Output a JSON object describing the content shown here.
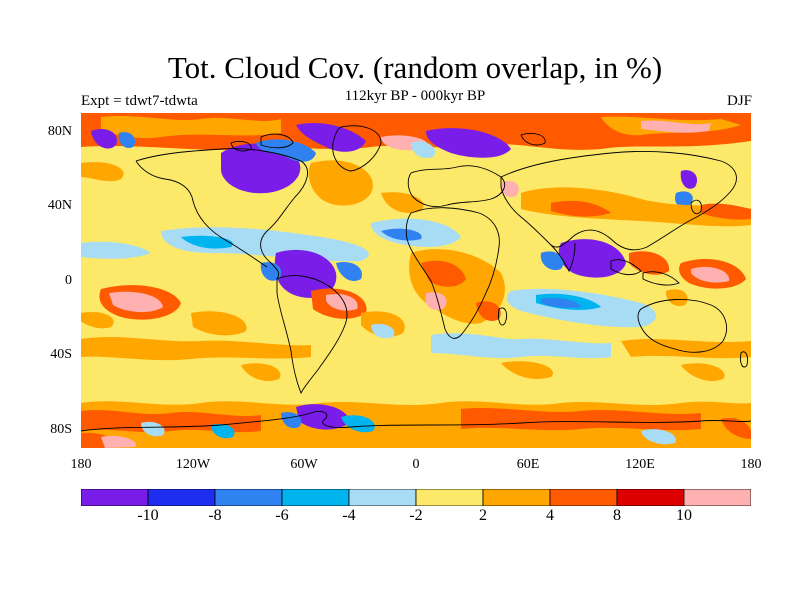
{
  "title": "Tot. Cloud Cov. (random overlap, in %)",
  "subtitle": "112kyr BP - 000kyr BP",
  "left_label": "Expt = tdwt7-tdwta",
  "right_label": "DJF",
  "lat_ticks": [
    "80N",
    "40N",
    "0",
    "40S",
    "80S"
  ],
  "lon_ticks": [
    "180",
    "120W",
    "60W",
    "0",
    "60E",
    "120E",
    "180"
  ],
  "colorbar": {
    "colors": [
      "#7a1de8",
      "#1e2ef0",
      "#2f82f0",
      "#00b4f0",
      "#a8dcf5",
      "#fce96a",
      "#ffa600",
      "#ff5a00",
      "#dd0000",
      "#ffb0b0"
    ],
    "labels": [
      "-10",
      "-8",
      "-6",
      "-4",
      "-2",
      "2",
      "4",
      "8",
      "10"
    ]
  }
}
